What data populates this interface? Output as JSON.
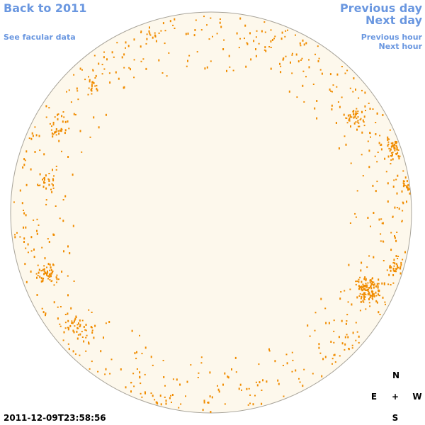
{
  "links": {
    "back": "Back to 2011",
    "facular_data": "See facular data",
    "previous_day": "Previous day",
    "next_day": "Next day",
    "previous_hour": "Previous hour",
    "next_hour": "Next hour"
  },
  "compass": {
    "north": "N",
    "east": "E",
    "center": "+",
    "west": "W",
    "south": "S"
  },
  "timestamp": "2011-12-09T23:58:56"
}
